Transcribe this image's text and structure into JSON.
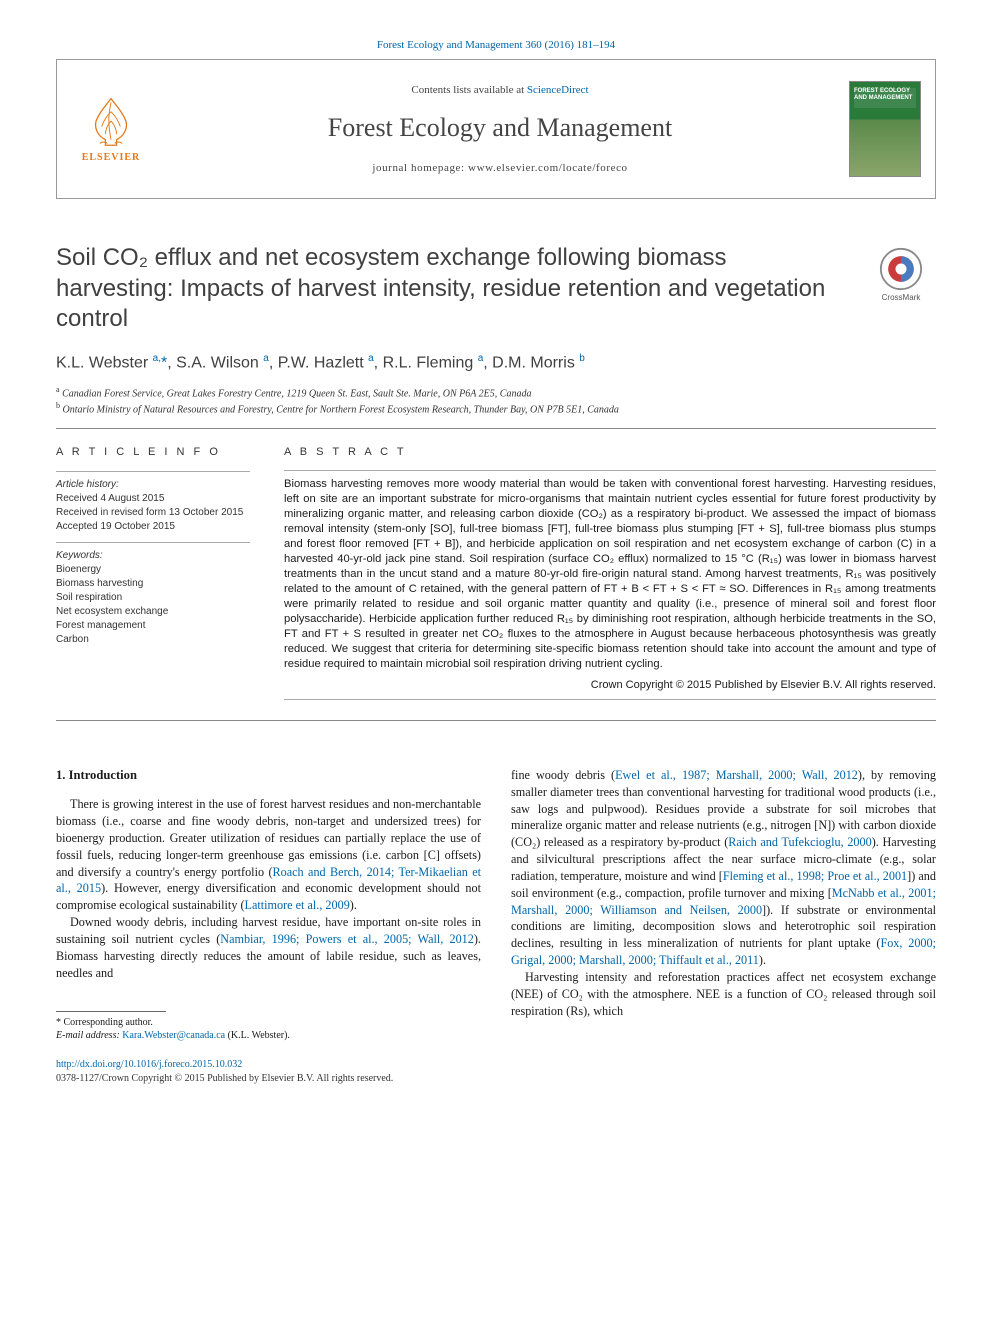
{
  "citation": "Forest Ecology and Management 360 (2016) 181–194",
  "header": {
    "publisher": "ELSEVIER",
    "contents_prefix": "Contents lists available at ",
    "contents_link": "ScienceDirect",
    "journal": "Forest Ecology and Management",
    "homepage_prefix": "journal homepage: ",
    "homepage": "www.elsevier.com/locate/foreco",
    "cover_text": "FOREST ECOLOGY AND MANAGEMENT"
  },
  "crossmark": "CrossMark",
  "title": "Soil CO₂ efflux and net ecosystem exchange following biomass harvesting: Impacts of harvest intensity, residue retention and vegetation control",
  "authors_html": "K.L. Webster <sup>a,</sup><span class=\"star\">*</span>, S.A. Wilson <sup>a</sup>, P.W. Hazlett <sup>a</sup>, R.L. Fleming <sup>a</sup>, D.M. Morris <sup>b</sup>",
  "affiliations": {
    "a": "Canadian Forest Service, Great Lakes Forestry Centre, 1219 Queen St. East, Sault Ste. Marie, ON P6A 2E5, Canada",
    "b": "Ontario Ministry of Natural Resources and Forestry, Centre for Northern Forest Ecosystem Research, Thunder Bay, ON P7B 5E1, Canada"
  },
  "article_info": {
    "heading": "A R T I C L E   I N F O",
    "history_label": "Article history:",
    "received": "Received 4 August 2015",
    "revised": "Received in revised form 13 October 2015",
    "accepted": "Accepted 19 October 2015",
    "keywords_label": "Keywords:",
    "keywords": [
      "Bioenergy",
      "Biomass harvesting",
      "Soil respiration",
      "Net ecosystem exchange",
      "Forest management",
      "Carbon"
    ]
  },
  "abstract": {
    "heading": "A B S T R A C T",
    "text": "Biomass harvesting removes more woody material than would be taken with conventional forest harvesting. Harvesting residues, left on site are an important substrate for micro-organisms that maintain nutrient cycles essential for future forest productivity by mineralizing organic matter, and releasing carbon dioxide (CO₂) as a respiratory bi-product. We assessed the impact of biomass removal intensity (stem-only [SO], full-tree biomass [FT], full-tree biomass plus stumping [FT + S], full-tree biomass plus stumps and forest floor removed [FT + B]), and herbicide application on soil respiration and net ecosystem exchange of carbon (C) in a harvested 40-yr-old jack pine stand. Soil respiration (surface CO₂ efflux) normalized to 15 °C (R₁₅) was lower in biomass harvest treatments than in the uncut stand and a mature 80-yr-old fire-origin natural stand. Among harvest treatments, R₁₅ was positively related to the amount of C retained, with the general pattern of FT + B < FT + S < FT ≈ SO. Differences in R₁₅ among treatments were primarily related to residue and soil organic matter quantity and quality (i.e., presence of mineral soil and forest floor polysaccharide). Herbicide application further reduced R₁₅ by diminishing root respiration, although herbicide treatments in the SO, FT and FT + S resulted in greater net CO₂ fluxes to the atmosphere in August because herbaceous photosynthesis was greatly reduced. We suggest that criteria for determining site-specific biomass retention should take into account the amount and type of residue required to maintain microbial soil respiration driving nutrient cycling.",
    "copyright": "Crown Copyright © 2015 Published by Elsevier B.V. All rights reserved."
  },
  "body": {
    "section_heading": "1. Introduction",
    "col1_p1": "There is growing interest in the use of forest harvest residues and non-merchantable biomass (i.e., coarse and fine woody debris, non-target and undersized trees) for bioenergy production. Greater utilization of residues can partially replace the use of fossil fuels, reducing longer-term greenhouse gas emissions (i.e. carbon [C] offsets) and diversify a country's energy portfolio (",
    "col1_p1_link1": "Roach and Berch, 2014; Ter-Mikaelian et al., 2015",
    "col1_p1_b": "). However, energy diversification and economic development should not compromise ecological sustainability (",
    "col1_p1_link2": "Lattimore et al., 2009",
    "col1_p1_c": ").",
    "col1_p2": "Downed woody debris, including harvest residue, have important on-site roles in sustaining soil nutrient cycles (",
    "col1_p2_link1": "Nambiar, 1996; Powers et al., 2005; Wall, 2012",
    "col1_p2_b": "). Biomass harvesting directly reduces the amount of labile residue, such as leaves, needles and",
    "col2_p1": "fine woody debris (",
    "col2_p1_link1": "Ewel et al., 1987; Marshall, 2000; Wall, 2012",
    "col2_p1_b": "), by removing smaller diameter trees than conventional harvesting for traditional wood products (i.e., saw logs and pulpwood). Residues provide a substrate for soil microbes that mineralize organic matter and release nutrients (e.g., nitrogen [N]) with carbon dioxide (CO₂) released as a respiratory by-product (",
    "col2_p1_link2": "Raich and Tufekcioglu, 2000",
    "col2_p1_c": "). Harvesting and silvicultural prescriptions affect the near surface micro-climate (e.g., solar radiation, temperature, moisture and wind [",
    "col2_p1_link3": "Fleming et al., 1998; Proe et al., 2001",
    "col2_p1_d": "]) and soil environment (e.g., compaction, profile turnover and mixing [",
    "col2_p1_link4": "McNabb et al., 2001; Marshall, 2000; Williamson and Neilsen, 2000",
    "col2_p1_e": "]). If substrate or environmental conditions are limiting, decomposition slows and heterotrophic soil respiration declines, resulting in less mineralization of nutrients for plant uptake (",
    "col2_p1_link5": "Fox, 2000; Grigal, 2000; Marshall, 2000; Thiffault et al., 2011",
    "col2_p1_f": ").",
    "col2_p2": "Harvesting intensity and reforestation practices affect net ecosystem exchange (NEE) of CO₂ with the atmosphere. NEE is a function of CO₂ released through soil respiration (Rs), which"
  },
  "footnote": {
    "corr": "Corresponding author.",
    "email_label": "E-mail address: ",
    "email": "Kara.Webster@canada.ca",
    "email_suffix": " (K.L. Webster)."
  },
  "footer": {
    "doi": "http://dx.doi.org/10.1016/j.foreco.2015.10.032",
    "issn_line": "0378-1127/Crown Copyright © 2015 Published by Elsevier B.V. All rights reserved."
  },
  "colors": {
    "link": "#0066aa",
    "elsevier_orange": "#e67817",
    "text": "#1a1a1a",
    "muted": "#404040"
  }
}
